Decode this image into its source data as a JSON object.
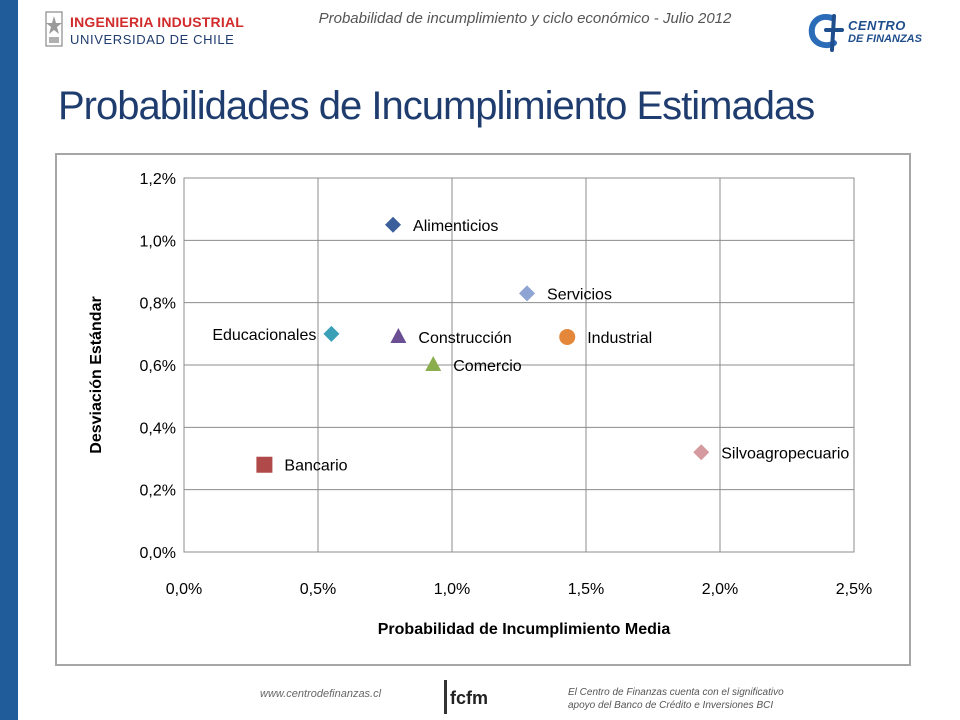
{
  "header": {
    "logo_left_line1": "INGENIERIA INDUSTRIAL",
    "logo_left_line2": "UNIVERSIDAD DE CHILE",
    "caption": "Probabilidad de incumplimiento y ciclo económico - Julio 2012",
    "logo_right_line1": "CENTRO",
    "logo_right_line2": "DE FINANZAS"
  },
  "slide_title": "Probabilidades de Incumplimiento Estimadas",
  "chart_data": {
    "type": "scatter",
    "title": "",
    "xlabel": "Probabilidad de Incumplimiento Media",
    "ylabel": "Desviación Estándar",
    "xlim": [
      0,
      0.025
    ],
    "ylim": [
      0,
      0.012
    ],
    "x_ticks": [
      0,
      0.005,
      0.01,
      0.015,
      0.02,
      0.025
    ],
    "x_tick_labels": [
      "0,0%",
      "0,5%",
      "1,0%",
      "1,5%",
      "2,0%",
      "2,5%"
    ],
    "y_ticks": [
      0,
      0.002,
      0.004,
      0.006,
      0.008,
      0.01,
      0.012
    ],
    "y_tick_labels": [
      "0,0%",
      "0,2%",
      "0,4%",
      "0,6%",
      "0,8%",
      "1,0%",
      "1,2%"
    ],
    "grid": true,
    "legend": "none",
    "points": [
      {
        "label": "Alimenticios",
        "x": 0.0078,
        "y": 0.0105,
        "marker": "diamond",
        "color": "#3a5f9a",
        "label_pos": "right"
      },
      {
        "label": "Servicios",
        "x": 0.0128,
        "y": 0.0083,
        "marker": "diamond",
        "color": "#8ea4d2",
        "label_pos": "right"
      },
      {
        "label": "Educacionales",
        "x": 0.0055,
        "y": 0.007,
        "marker": "diamond",
        "color": "#3aa0b8",
        "label_pos": "left"
      },
      {
        "label": "Construcción",
        "x": 0.008,
        "y": 0.0069,
        "marker": "triangle",
        "color": "#6a4f94",
        "label_pos": "right"
      },
      {
        "label": "Industrial",
        "x": 0.0143,
        "y": 0.0069,
        "marker": "circle",
        "color": "#e4873a",
        "label_pos": "right"
      },
      {
        "label": "Comercio",
        "x": 0.0093,
        "y": 0.006,
        "marker": "triangle",
        "color": "#8aae4e",
        "label_pos": "right"
      },
      {
        "label": "Bancario",
        "x": 0.003,
        "y": 0.0028,
        "marker": "square",
        "color": "#b04a4a",
        "label_pos": "right"
      },
      {
        "label": "Silvoagropecuario",
        "x": 0.0193,
        "y": 0.0032,
        "marker": "diamond",
        "color": "#d49a9e",
        "label_pos": "right"
      }
    ]
  },
  "footer": {
    "url": "www.centrodefinanzas.cl",
    "logo_text": "fcfm",
    "note_line1": "El Centro de Finanzas cuenta con el significativo",
    "note_line2": "apoyo del Banco de Crédito e Inversiones BCI"
  }
}
